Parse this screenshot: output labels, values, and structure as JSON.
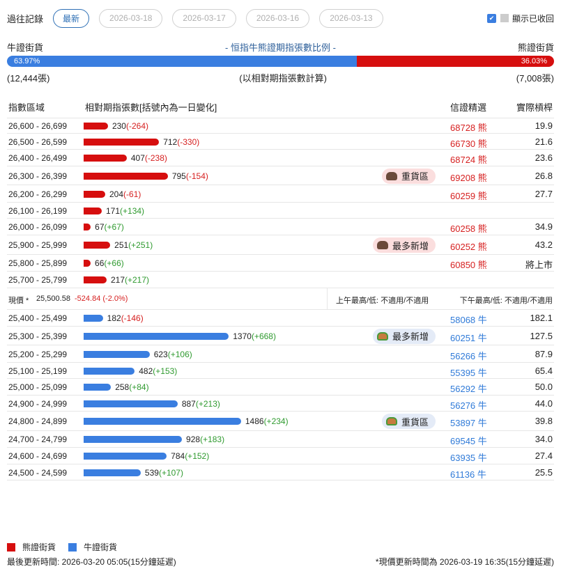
{
  "top": {
    "label": "過往記錄",
    "tabs": [
      "最新",
      "2026-03-18",
      "2026-03-17",
      "2026-03-16",
      "2026-03-13"
    ],
    "show_collected": "顯示已收回"
  },
  "ratio": {
    "left_label": "牛證街貨",
    "title": "- 恒指牛熊證期指張數比例 -",
    "right_label": "熊證街貨",
    "bull_pct": "63.97%",
    "bear_pct": "36.03%",
    "bull_fraction": 0.6397,
    "bull_count": "(12,444張)",
    "note": "(以相對期指張數計算)",
    "bear_count": "(7,008張)"
  },
  "table": {
    "headers": [
      "指數區域",
      "相對期指張數[括號內為一日變化]",
      "信證精選",
      "實際槓桿"
    ],
    "bear_rows": [
      {
        "range": "26,600 - 26,699",
        "qty": 230,
        "qty_text": "230",
        "chg": "(-264)",
        "sel": "68728",
        "sel_type": "熊",
        "lev": "19.9"
      },
      {
        "range": "26,500 - 26,599",
        "qty": 712,
        "qty_text": "712",
        "chg": "(-330)",
        "sel": "66730",
        "sel_type": "熊",
        "lev": "21.6"
      },
      {
        "range": "26,400 - 26,499",
        "qty": 407,
        "qty_text": "407",
        "chg": "(-238)",
        "sel": "68724",
        "sel_type": "熊",
        "lev": "23.6"
      },
      {
        "range": "26,300 - 26,399",
        "qty": 795,
        "qty_text": "795",
        "chg": "(-154)",
        "sel": "69208",
        "sel_type": "熊",
        "lev": "26.8",
        "badge": "重貨區"
      },
      {
        "range": "26,200 - 26,299",
        "qty": 204,
        "qty_text": "204",
        "chg": "(-61)",
        "sel": "60259",
        "sel_type": "熊",
        "lev": "27.7"
      },
      {
        "range": "26,100 - 26,199",
        "qty": 171,
        "qty_text": "171",
        "chg": "(+134)",
        "sel": "",
        "sel_type": "",
        "lev": ""
      },
      {
        "range": "26,000 - 26,099",
        "qty": 67,
        "qty_text": "67",
        "chg": "(+67)",
        "sel": "60258",
        "sel_type": "熊",
        "lev": "34.9"
      },
      {
        "range": "25,900 - 25,999",
        "qty": 251,
        "qty_text": "251",
        "chg": "(+251)",
        "sel": "60252",
        "sel_type": "熊",
        "lev": "43.2",
        "badge": "最多新增"
      },
      {
        "range": "25,800 - 25,899",
        "qty": 66,
        "qty_text": "66",
        "chg": "(+66)",
        "sel": "60850",
        "sel_type": "熊",
        "lev": "將上市"
      },
      {
        "range": "25,700 - 25,799",
        "qty": 217,
        "qty_text": "217",
        "chg": "(+217)",
        "sel": "",
        "sel_type": "",
        "lev": ""
      }
    ],
    "current": {
      "label": "現價 *",
      "price": "25,500.58",
      "change": "-524.84 (-2.0%)",
      "am": "上午最高/低: 不適用/不適用",
      "pm": "下午最高/低: 不適用/不適用"
    },
    "bull_rows": [
      {
        "range": "25,400 - 25,499",
        "qty": 182,
        "qty_text": "182",
        "chg": "(-146)",
        "sel": "58068",
        "sel_type": "牛",
        "lev": "182.1"
      },
      {
        "range": "25,300 - 25,399",
        "qty": 1370,
        "qty_text": "1370",
        "chg": "(+668)",
        "sel": "60251",
        "sel_type": "牛",
        "lev": "127.5",
        "badge": "最多新增"
      },
      {
        "range": "25,200 - 25,299",
        "qty": 623,
        "qty_text": "623",
        "chg": "(+106)",
        "sel": "56266",
        "sel_type": "牛",
        "lev": "87.9"
      },
      {
        "range": "25,100 - 25,199",
        "qty": 482,
        "qty_text": "482",
        "chg": "(+153)",
        "sel": "55395",
        "sel_type": "牛",
        "lev": "65.4"
      },
      {
        "range": "25,000 - 25,099",
        "qty": 258,
        "qty_text": "258",
        "chg": "(+84)",
        "sel": "56292",
        "sel_type": "牛",
        "lev": "50.0"
      },
      {
        "range": "24,900 - 24,999",
        "qty": 887,
        "qty_text": "887",
        "chg": "(+213)",
        "sel": "56276",
        "sel_type": "牛",
        "lev": "44.0"
      },
      {
        "range": "24,800 - 24,899",
        "qty": 1486,
        "qty_text": "1486",
        "chg": "(+234)",
        "sel": "53897",
        "sel_type": "牛",
        "lev": "39.8",
        "badge": "重貨區"
      },
      {
        "range": "24,700 - 24,799",
        "qty": 928,
        "qty_text": "928",
        "chg": "(+183)",
        "sel": "69545",
        "sel_type": "牛",
        "lev": "34.0"
      },
      {
        "range": "24,600 - 24,699",
        "qty": 784,
        "qty_text": "784",
        "chg": "(+152)",
        "sel": "63935",
        "sel_type": "牛",
        "lev": "27.4"
      },
      {
        "range": "24,500 - 24,599",
        "qty": 539,
        "qty_text": "539",
        "chg": "(+107)",
        "sel": "61136",
        "sel_type": "牛",
        "lev": "25.5"
      }
    ]
  },
  "legend": {
    "bear": "熊證街貨",
    "bull": "牛證街貨"
  },
  "footer": {
    "left": "最後更新時間: 2026-03-20 05:05(15分鐘延遲)",
    "right": "*現價更新時間為 2026-03-19 16:35(15分鐘延遲)"
  },
  "colors": {
    "bear": "#d60e0e",
    "bull": "#3a7ee0"
  }
}
